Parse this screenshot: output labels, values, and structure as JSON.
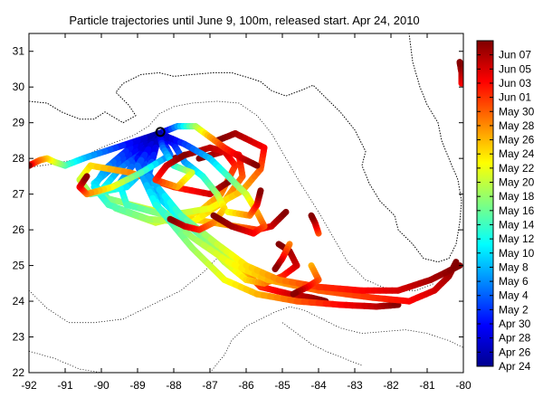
{
  "chart_data": {
    "type": "line",
    "title": "Particle trajectories until June 9, 100m, released start. Apr 24, 2010",
    "xlabel": "",
    "ylabel": "",
    "xlim": [
      -92,
      -80
    ],
    "ylim": [
      22,
      31.5
    ],
    "x_ticks": [
      "-92",
      "-91",
      "-90",
      "-89",
      "-88",
      "-87",
      "-86",
      "-85",
      "-84",
      "-83",
      "-82",
      "-81",
      "-80"
    ],
    "y_ticks": [
      "22",
      "23",
      "24",
      "25",
      "26",
      "27",
      "28",
      "29",
      "30",
      "31"
    ],
    "grid": false,
    "release_point": {
      "lon": -88.37,
      "lat": 28.74
    },
    "colorbar": {
      "labels": [
        "Apr 24",
        "Apr 26",
        "Apr 28",
        "Apr 30",
        "May 2",
        "May 4",
        "May 6",
        "May 8",
        "May 10",
        "May 12",
        "May 14",
        "May 16",
        "May 18",
        "May 20",
        "May 22",
        "May 24",
        "May 26",
        "May 28",
        "May 30",
        "Jun 01",
        "Jun 03",
        "Jun 05",
        "Jun 07"
      ],
      "range_days": [
        0,
        46
      ],
      "colors": [
        "#00008f",
        "#0000ff",
        "#0080ff",
        "#00ffff",
        "#80ff80",
        "#ffff00",
        "#ff8000",
        "#ff0000",
        "#800000"
      ]
    },
    "coastline": [
      [
        -92,
        29.6
      ],
      [
        -91.5,
        29.55
      ],
      [
        -91.1,
        29.3
      ],
      [
        -90.6,
        29.1
      ],
      [
        -90.2,
        29.1
      ],
      [
        -89.9,
        29.3
      ],
      [
        -89.4,
        29.0
      ],
      [
        -89.05,
        29.2
      ],
      [
        -89.25,
        29.5
      ],
      [
        -89.6,
        29.85
      ],
      [
        -89.4,
        30.1
      ],
      [
        -88.9,
        30.35
      ],
      [
        -88.4,
        30.4
      ],
      [
        -88.0,
        30.3
      ],
      [
        -87.5,
        30.35
      ],
      [
        -86.9,
        30.4
      ],
      [
        -86.4,
        30.4
      ],
      [
        -85.9,
        30.25
      ],
      [
        -85.6,
        30.15
      ],
      [
        -85.3,
        29.9
      ],
      [
        -84.9,
        29.75
      ],
      [
        -84.5,
        29.9
      ],
      [
        -84.15,
        30.05
      ],
      [
        -83.8,
        29.7
      ],
      [
        -83.4,
        29.3
      ],
      [
        -83.0,
        28.8
      ],
      [
        -82.7,
        28.2
      ],
      [
        -82.8,
        27.8
      ],
      [
        -82.6,
        27.3
      ],
      [
        -82.3,
        26.8
      ],
      [
        -81.9,
        26.4
      ],
      [
        -81.8,
        26.0
      ],
      [
        -81.4,
        25.6
      ],
      [
        -81.1,
        25.2
      ],
      [
        -80.7,
        25.1
      ],
      [
        -80.4,
        25.2
      ],
      [
        -80.2,
        25.6
      ],
      [
        -80.1,
        26.2
      ],
      [
        -80.05,
        26.8
      ],
      [
        -80.15,
        27.4
      ],
      [
        -80.4,
        28.0
      ],
      [
        -80.6,
        28.5
      ],
      [
        -80.7,
        29.0
      ],
      [
        -81.0,
        29.5
      ],
      [
        -81.2,
        30.0
      ],
      [
        -81.4,
        30.7
      ],
      [
        -81.5,
        31.5
      ]
    ],
    "bathymetry": [
      [
        [
          -92,
          27.75
        ],
        [
          -91.3,
          27.85
        ],
        [
          -90.6,
          28.0
        ],
        [
          -90.0,
          28.3
        ],
        [
          -89.5,
          28.5
        ],
        [
          -89.1,
          28.65
        ],
        [
          -88.7,
          28.9
        ],
        [
          -88.4,
          29.25
        ],
        [
          -88.0,
          29.45
        ],
        [
          -87.5,
          29.55
        ],
        [
          -86.8,
          29.6
        ],
        [
          -86.2,
          29.55
        ],
        [
          -85.7,
          29.2
        ],
        [
          -85.3,
          28.7
        ],
        [
          -84.9,
          28.0
        ],
        [
          -84.5,
          27.3
        ],
        [
          -84.0,
          26.5
        ],
        [
          -83.6,
          25.8
        ],
        [
          -83.2,
          25.1
        ],
        [
          -82.7,
          24.6
        ],
        [
          -82.0,
          24.3
        ],
        [
          -81.3,
          24.3
        ],
        [
          -80.8,
          24.5
        ]
      ],
      [
        [
          -92,
          24.3
        ],
        [
          -91.5,
          23.8
        ],
        [
          -90.9,
          23.4
        ],
        [
          -90.2,
          23.4
        ],
        [
          -89.4,
          23.5
        ],
        [
          -88.6,
          23.9
        ],
        [
          -87.8,
          24.3
        ],
        [
          -87.2,
          24.8
        ],
        [
          -86.7,
          25.3
        ]
      ],
      [
        [
          -92,
          22.6
        ],
        [
          -91.3,
          22.4
        ],
        [
          -90.6,
          22.1
        ],
        [
          -90.0,
          22.0
        ]
      ],
      [
        [
          -87.0,
          22.0
        ],
        [
          -86.6,
          22.5
        ],
        [
          -86.4,
          22.9
        ],
        [
          -86.0,
          23.3
        ],
        [
          -85.6,
          23.5
        ],
        [
          -85.2,
          23.7
        ],
        [
          -84.8,
          23.85
        ],
        [
          -84.4,
          23.75
        ],
        [
          -84.0,
          23.55
        ],
        [
          -83.4,
          23.25
        ],
        [
          -82.8,
          23.1
        ],
        [
          -82.2,
          23.15
        ],
        [
          -81.6,
          23.2
        ],
        [
          -81.0,
          23.1
        ],
        [
          -80.4,
          22.9
        ],
        [
          -80.0,
          22.7
        ]
      ],
      [
        [
          -85.0,
          23.4
        ],
        [
          -84.6,
          23.1
        ],
        [
          -84.2,
          22.8
        ],
        [
          -83.8,
          22.6
        ],
        [
          -83.3,
          22.4
        ],
        [
          -82.8,
          22.2
        ]
      ]
    ],
    "series": [
      {
        "t": [
          0,
          6,
          12,
          18,
          22,
          26,
          30,
          34,
          38,
          42,
          46
        ],
        "lon": [
          -88.4,
          -88.9,
          -89.5,
          -90.0,
          -89.6,
          -88.5,
          -87.3,
          -86.7,
          -86.3,
          -86.6,
          -87.3
        ],
        "lat": [
          28.7,
          28.2,
          27.7,
          27.1,
          26.6,
          26.2,
          26.5,
          27.0,
          27.8,
          28.2,
          28.0
        ]
      },
      {
        "t": [
          0,
          8,
          16,
          22,
          26,
          30,
          34,
          38,
          42,
          46
        ],
        "lon": [
          -88.4,
          -89.4,
          -90.2,
          -89.9,
          -88.8,
          -87.5,
          -86.3,
          -85.7,
          -85.3,
          -84.9
        ],
        "lat": [
          28.7,
          28.0,
          27.3,
          26.9,
          26.6,
          26.3,
          26.1,
          26.0,
          26.1,
          26.5
        ]
      },
      {
        "t": [
          0,
          6,
          12,
          16,
          20,
          24,
          28,
          32,
          36,
          40,
          43,
          46
        ],
        "lon": [
          -88.4,
          -89.2,
          -89.9,
          -90.2,
          -89.8,
          -88.7,
          -87.5,
          -86.6,
          -86.1,
          -86.2,
          -87.0,
          -88.0
        ],
        "lat": [
          28.7,
          28.3,
          27.7,
          27.2,
          26.7,
          26.3,
          26.2,
          26.8,
          27.5,
          28.1,
          28.3,
          28.0
        ]
      },
      {
        "t": [
          0,
          8,
          14,
          20,
          24,
          28,
          32,
          36,
          40,
          44,
          46
        ],
        "lon": [
          -88.4,
          -89.0,
          -89.5,
          -89.3,
          -88.2,
          -87.0,
          -86.1,
          -85.6,
          -85.5,
          -86.3,
          -86.8
        ],
        "lat": [
          28.7,
          28.0,
          27.3,
          26.7,
          26.4,
          26.6,
          27.1,
          27.7,
          28.3,
          28.7,
          28.5
        ]
      },
      {
        "t": [
          0,
          10,
          16,
          22,
          26,
          30,
          34,
          38,
          42,
          46
        ],
        "lon": [
          -88.4,
          -88.6,
          -89.3,
          -90.3,
          -90.6,
          -90.3,
          -89.2,
          -88.0,
          -87.0,
          -86.4
        ],
        "lat": [
          28.7,
          27.9,
          27.2,
          27.0,
          27.4,
          27.8,
          27.6,
          27.2,
          27.0,
          27.4
        ]
      },
      {
        "t": [
          0,
          8,
          14,
          20,
          26,
          30,
          34,
          38,
          42,
          46
        ],
        "lon": [
          -88.4,
          -89.6,
          -90.5,
          -91.0,
          -91.3,
          -91.5,
          -91.7,
          -91.9,
          -92.0,
          -92.0
        ],
        "lat": [
          28.7,
          28.3,
          28.0,
          27.8,
          27.9,
          28.0,
          27.95,
          27.85,
          27.8,
          27.8
        ]
      },
      {
        "t": [
          0,
          6,
          12,
          18,
          22,
          26,
          30,
          34,
          38,
          40,
          42,
          44,
          46
        ],
        "lon": [
          -88.4,
          -89.0,
          -88.7,
          -87.9,
          -87.1,
          -86.5,
          -86.1,
          -85.8,
          -85.6,
          -85.2,
          -84.8,
          -84.2,
          -83.8
        ],
        "lat": [
          28.7,
          28.0,
          27.2,
          26.4,
          25.7,
          25.2,
          24.8,
          24.6,
          24.4,
          24.3,
          24.2,
          24.1,
          24.0
        ]
      },
      {
        "t": [
          0,
          10,
          18,
          24,
          28,
          32,
          36,
          40,
          43,
          46
        ],
        "lon": [
          -88.4,
          -88.9,
          -88.4,
          -87.5,
          -86.6,
          -85.7,
          -84.6,
          -83.4,
          -82.4,
          -81.8
        ],
        "lat": [
          28.7,
          27.7,
          26.6,
          25.5,
          24.6,
          24.2,
          24.0,
          23.9,
          23.85,
          23.9
        ]
      },
      {
        "t": [
          0,
          8,
          16,
          22,
          26,
          30,
          34,
          38,
          42,
          44,
          46
        ],
        "lon": [
          -88.4,
          -88.9,
          -88.2,
          -87.3,
          -86.6,
          -86.0,
          -85.5,
          -85.0,
          -84.6,
          -84.8,
          -85.1
        ],
        "lat": [
          28.7,
          27.9,
          26.8,
          25.9,
          25.1,
          24.6,
          24.5,
          24.7,
          25.0,
          25.4,
          25.6
        ]
      },
      {
        "t": [
          0,
          10,
          18,
          24,
          28,
          32,
          36,
          38,
          40,
          42,
          44,
          46
        ],
        "lon": [
          -88.4,
          -89.0,
          -88.5,
          -87.5,
          -86.5,
          -85.4,
          -84.0,
          -82.5,
          -81.5,
          -80.8,
          -80.4,
          -80.2
        ],
        "lat": [
          28.7,
          27.8,
          26.7,
          25.8,
          25.1,
          24.6,
          24.3,
          24.1,
          24.0,
          24.3,
          24.7,
          25.1
        ]
      },
      {
        "t": [
          0,
          12,
          20,
          26,
          30,
          34,
          38,
          40,
          42,
          44,
          46
        ],
        "lon": [
          -88.4,
          -88.7,
          -87.8,
          -86.8,
          -86.0,
          -85.1,
          -84.0,
          -82.8,
          -81.8,
          -80.9,
          -80.1
        ],
        "lat": [
          28.7,
          27.5,
          26.4,
          25.6,
          25.0,
          24.6,
          24.4,
          24.3,
          24.3,
          24.6,
          25.0
        ]
      },
      {
        "t": [
          0,
          6,
          12,
          18,
          24,
          30,
          34,
          38,
          42,
          46
        ],
        "lon": [
          -88.4,
          -88.0,
          -87.7,
          -87.2,
          -86.8,
          -86.6,
          -86.9,
          -87.3,
          -87.7,
          -88.1
        ],
        "lat": [
          28.7,
          28.4,
          27.9,
          27.5,
          27.0,
          26.6,
          26.2,
          26.0,
          26.1,
          26.3
        ]
      },
      {
        "t": [
          0,
          8,
          14,
          20,
          26,
          32,
          36,
          40,
          44,
          46
        ],
        "lon": [
          -88.4,
          -87.7,
          -87.0,
          -86.5,
          -86.0,
          -85.7,
          -85.5,
          -85.8,
          -86.4,
          -86.9
        ],
        "lat": [
          28.7,
          28.4,
          28.0,
          27.5,
          27.0,
          26.5,
          26.1,
          25.9,
          26.1,
          26.4
        ]
      },
      {
        "t": [
          0,
          10,
          20,
          28,
          34,
          40,
          46
        ],
        "lon": [
          -88.4,
          -88.1,
          -88.9,
          -89.7,
          -90.4,
          -90.6,
          -90.4
        ],
        "lat": [
          28.7,
          28.1,
          27.6,
          27.2,
          27.0,
          27.2,
          27.5
        ]
      },
      {
        "t": [
          0,
          12,
          24,
          32,
          38,
          42,
          46
        ],
        "lon": [
          -88.4,
          -87.9,
          -87.4,
          -87.0,
          -86.6,
          -86.1,
          -85.7
        ],
        "lat": [
          28.7,
          28.9,
          28.9,
          28.6,
          28.3,
          28.0,
          27.8
        ]
      },
      {
        "t": [
          0,
          10,
          18,
          26,
          32,
          38,
          42,
          46
        ],
        "lon": [
          -88.4,
          -88.3,
          -88.0,
          -87.5,
          -87.9,
          -88.5,
          -88.2,
          -87.7
        ],
        "lat": [
          28.7,
          28.3,
          27.8,
          27.6,
          27.2,
          27.4,
          27.8,
          28.1
        ]
      },
      {
        "t": [
          34,
          40,
          46
        ],
        "lon": [
          -84.8,
          -85.0,
          -85.2
        ],
        "lat": [
          25.6,
          25.2,
          24.9
        ]
      },
      {
        "t": [
          32,
          36,
          40,
          46
        ],
        "lon": [
          -84.2,
          -84.0,
          -84.3,
          -84.7
        ],
        "lat": [
          25.0,
          24.6,
          24.4,
          24.2
        ]
      },
      {
        "t": [
          28,
          34,
          40,
          46
        ],
        "lon": [
          -86.5,
          -85.9,
          -85.7,
          -85.6
        ],
        "lat": [
          26.5,
          26.4,
          26.7,
          27.1
        ]
      },
      {
        "t": [
          40,
          43,
          46
        ],
        "lon": [
          -80.05,
          -80.05,
          -80.1
        ],
        "lat": [
          30.1,
          30.4,
          30.7
        ]
      },
      {
        "t": [
          36,
          42,
          46
        ],
        "lon": [
          -84.0,
          -84.1,
          -84.2
        ],
        "lat": [
          25.9,
          26.2,
          26.4
        ]
      }
    ]
  }
}
